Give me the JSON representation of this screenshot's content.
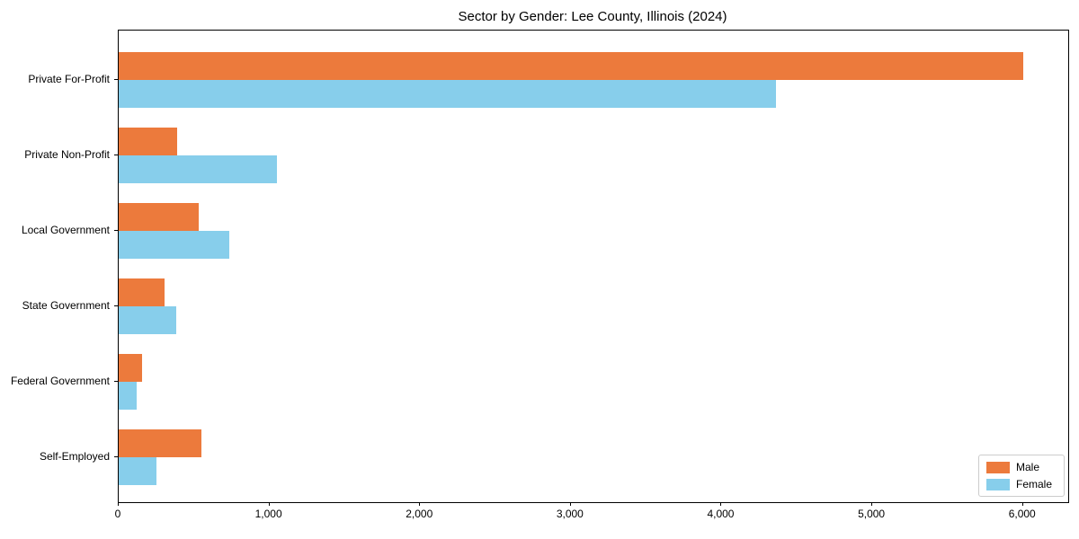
{
  "figure": {
    "background": "#ffffff",
    "axes_edge_color": "#000000",
    "legend_border_color": "#cccccc"
  },
  "chart_data": {
    "type": "bar",
    "orientation": "horizontal",
    "title": "Sector by Gender: Lee County, Illinois (2024)",
    "xlabel": "",
    "ylabel": "",
    "categories": [
      "Private For-Profit",
      "Private Non-Profit",
      "Local Government",
      "State Government",
      "Federal Government",
      "Self-Employed"
    ],
    "series": [
      {
        "name": "Male",
        "color": "#EC7A3C",
        "values": [
          6000,
          385,
          530,
          305,
          155,
          550
        ]
      },
      {
        "name": "Female",
        "color": "#87CEEB",
        "values": [
          4360,
          1050,
          735,
          380,
          120,
          250
        ]
      }
    ],
    "xlim": [
      0,
      6300
    ],
    "xticks": [
      0,
      1000,
      2000,
      3000,
      4000,
      5000,
      6000
    ],
    "xtick_labels": [
      "0",
      "1,000",
      "2,000",
      "3,000",
      "4,000",
      "5,000",
      "6,000"
    ],
    "grid": false,
    "legend": {
      "position": "lower right",
      "entries": [
        "Male",
        "Female"
      ]
    }
  }
}
